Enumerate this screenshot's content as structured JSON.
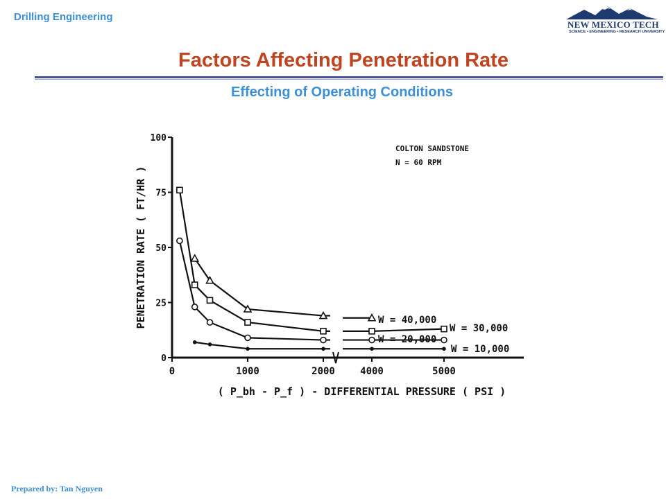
{
  "header": {
    "course": "Drilling Engineering"
  },
  "logo": {
    "name": "NEW MEXICO TECH",
    "tagline": "SCIENCE • ENGINEERING • RESEARCH UNIVERSITY"
  },
  "slide": {
    "title": "Factors Affecting Penetration Rate",
    "subtitle": "Effecting of Operating Conditions"
  },
  "footer": {
    "prepared_by": "Prepared by: Tan Nguyen"
  },
  "colors": {
    "accent_blue": "#3d8fd6",
    "title_red": "#c0441f",
    "rule_blue": "#4a4f9c",
    "logo_navy": "#1f3a6e"
  },
  "chart_data": {
    "type": "line",
    "ylabel": "PENETRATION RATE ( FT/HR )",
    "xlabel": "( P_bh - P_f ) - DIFFERENTIAL PRESSURE ( PSI )",
    "ylim": [
      0,
      100
    ],
    "y_ticks": [
      0,
      25,
      50,
      75,
      100
    ],
    "x_segments": [
      [
        0,
        2000
      ],
      [
        4000,
        5000
      ]
    ],
    "x_ticks": [
      0,
      1000,
      2000,
      4000,
      5000
    ],
    "grid": false,
    "annotations": [
      "COLTON SANDSTONE",
      "N = 60 RPM"
    ],
    "series": [
      {
        "name": "W = 40,000",
        "marker": "triangle",
        "points": [
          [
            300,
            45
          ],
          [
            500,
            35
          ],
          [
            1000,
            22
          ],
          [
            2000,
            19
          ],
          [
            4000,
            18
          ]
        ]
      },
      {
        "name": "W = 30,000",
        "marker": "square",
        "points": [
          [
            100,
            76
          ],
          [
            300,
            33
          ],
          [
            500,
            26
          ],
          [
            1000,
            16
          ],
          [
            2000,
            12
          ],
          [
            4000,
            12
          ],
          [
            5000,
            13
          ]
        ]
      },
      {
        "name": "W = 20,000",
        "marker": "circle",
        "points": [
          [
            100,
            53
          ],
          [
            300,
            23
          ],
          [
            500,
            16
          ],
          [
            1000,
            9
          ],
          [
            2000,
            8
          ],
          [
            4000,
            8
          ],
          [
            5000,
            8
          ]
        ]
      },
      {
        "name": "W = 10,000",
        "marker": "dot",
        "points": [
          [
            300,
            7
          ],
          [
            500,
            6
          ],
          [
            1000,
            4
          ],
          [
            2000,
            4
          ],
          [
            4000,
            4
          ],
          [
            5000,
            4
          ]
        ]
      }
    ]
  }
}
